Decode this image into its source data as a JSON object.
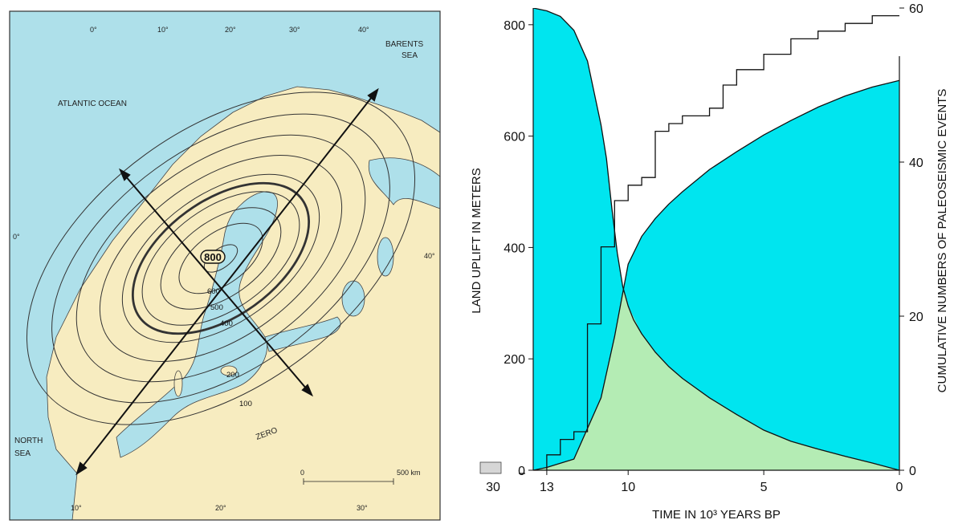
{
  "map": {
    "labels": {
      "barents": [
        "BARENTS",
        "SEA"
      ],
      "atlantic": "ATLANTIC OCEAN",
      "north_sea": [
        "NORTH",
        "SEA"
      ],
      "zero": "ZERO",
      "scale": "500 km",
      "scale_zero": "0"
    },
    "top_ticks": [
      "0°",
      "10°",
      "20°",
      "30°",
      "40°"
    ],
    "bottom_ticks": [
      "10°",
      "20°",
      "30°"
    ],
    "left_tick": "0°",
    "right_tick": "40°",
    "contour_labels": {
      "c800": "800",
      "c600": "600",
      "c500": "500",
      "c400": "400",
      "c200": "200",
      "c100": "100"
    },
    "colors": {
      "sea": "#aee0ea",
      "land": "#f7ecc0",
      "frame": "#333333"
    }
  },
  "chart_data": {
    "type": "area",
    "xlabel": "TIME IN 10³ YEARS BP",
    "ylabel_left": "LAND UPLIFT IN METERS",
    "ylabel_right": "CUMULATIVE NUMBERS OF PALEOSEISMIC EVENTS",
    "x_ticks": [
      "13",
      "10",
      "5",
      "0"
    ],
    "x_break_tick": "30",
    "y_left_ticks": [
      "0",
      "200",
      "400",
      "600",
      "800"
    ],
    "y_right_ticks": [
      "0",
      "20",
      "40",
      "60"
    ],
    "xlim": [
      13.5,
      0
    ],
    "ylim_left": [
      0,
      830
    ],
    "ylim_right": [
      0,
      60
    ],
    "series": [
      {
        "type": "area",
        "color": "#00e5ef",
        "x": [
          13.5,
          13.0,
          12.5,
          12.0,
          11.5,
          11.0,
          10.8,
          10.6,
          10.4,
          10.2,
          10.0,
          9.8,
          9.5,
          9.0,
          8.5,
          8.0,
          7.0,
          6.0,
          5.0,
          4.0,
          3.0,
          2.0,
          1.0,
          0.0
        ],
        "y": [
          830,
          825,
          815,
          790,
          735,
          620,
          560,
          470,
          390,
          330,
          295,
          270,
          245,
          212,
          186,
          165,
          130,
          100,
          72,
          52,
          38,
          25,
          13,
          0
        ]
      },
      {
        "type": "area",
        "color": "#ffff00",
        "x": [
          13.5,
          13.0,
          12.0,
          11.0,
          10.5,
          10.0,
          9.5,
          9.0,
          8.5,
          8.0,
          7.0,
          6.0,
          5.0,
          4.0,
          3.0,
          2.0,
          1.0,
          0.0
        ],
        "y": [
          0,
          5,
          20,
          130,
          240,
          370,
          420,
          452,
          478,
          500,
          540,
          572,
          602,
          628,
          652,
          672,
          688,
          700
        ]
      },
      {
        "type": "step",
        "color": "#d6d6d6",
        "x": [
          13.0,
          12.5,
          12.0,
          11.5,
          11.0,
          10.5,
          10.0,
          9.5,
          9.0,
          8.5,
          8.0,
          7.0,
          6.5,
          6.0,
          5.0,
          4.0,
          3.0,
          2.0,
          1.0,
          0.0
        ],
        "y": [
          2,
          4,
          5,
          19,
          29,
          35,
          37,
          38,
          44,
          45,
          46,
          47,
          50,
          52,
          54,
          56,
          57,
          58,
          59,
          59
        ]
      }
    ],
    "overlap_color": "#b4ecb4"
  }
}
